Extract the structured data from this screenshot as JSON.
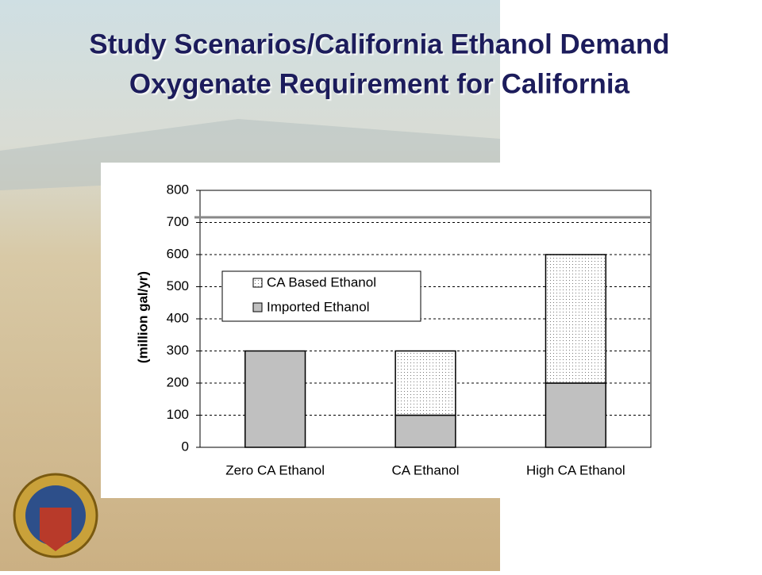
{
  "chart_data": {
    "type": "stacked-bar",
    "title": [
      "Study Scenarios/California Ethanol Demand",
      "Oxygenate Requirement for California"
    ],
    "y_label": "(million gal/yr)",
    "categories": [
      "Zero CA Ethanol",
      "CA Ethanol",
      "High CA Ethanol"
    ],
    "series": [
      {
        "name": "Imported Ethanol",
        "color": "#c0c0c0",
        "values": [
          300,
          100,
          200
        ]
      },
      {
        "name": "CA Based Ethanol",
        "color": "#ffffff",
        "pattern": "dots",
        "values": [
          0,
          200,
          400
        ]
      }
    ],
    "ylim": [
      0,
      800
    ],
    "yticks": [
      0,
      100,
      200,
      300,
      400,
      500,
      600,
      700,
      800
    ],
    "grid": true
  }
}
